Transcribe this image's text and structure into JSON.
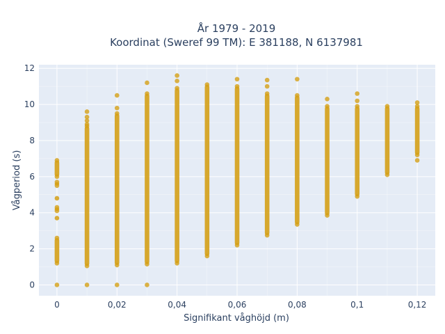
{
  "chart_data": {
    "type": "scatter",
    "title_line1": "År 1979 - 2019",
    "title_line2": "Koordinat (Sweref 99 TM): E 381188, N 6137981",
    "xlabel": "Signifikant våghöjd (m)",
    "ylabel": "Vågperiod (s)",
    "xlim": [
      -0.006,
      0.126
    ],
    "ylim": [
      -0.6,
      12.2
    ],
    "xticks": [
      0,
      0.02,
      0.04,
      0.06,
      0.08,
      0.1,
      0.12
    ],
    "xtick_labels": [
      "0",
      "0,02",
      "0,04",
      "0,06",
      "0,08",
      "0,1",
      "0,12"
    ],
    "yticks": [
      0,
      2,
      4,
      6,
      8,
      10,
      12
    ],
    "ytick_labels": [
      "0",
      "2",
      "4",
      "6",
      "8",
      "10",
      "12"
    ],
    "grid": true,
    "marker_color": "#d4a017",
    "plot_bg": "#e5ecf6",
    "columns": [
      {
        "x": 0,
        "ranges": [
          [
            1.2,
            2.6
          ],
          [
            3.7,
            3.7
          ],
          [
            4.1,
            4.3
          ],
          [
            4.8,
            4.8
          ],
          [
            5.5,
            5.7
          ],
          [
            6.0,
            6.9
          ]
        ],
        "points": [
          0
        ]
      },
      {
        "x": 0.01,
        "ranges": [
          [
            1.05,
            8.8
          ]
        ],
        "points": [
          0,
          8.9,
          9.1,
          9.3,
          9.6
        ]
      },
      {
        "x": 0.02,
        "ranges": [
          [
            1.1,
            9.5
          ]
        ],
        "points": [
          0,
          9.8,
          10.5
        ]
      },
      {
        "x": 0.03,
        "ranges": [
          [
            1.15,
            10.6
          ]
        ],
        "points": [
          0,
          11.2
        ]
      },
      {
        "x": 0.04,
        "ranges": [
          [
            1.2,
            10.9
          ]
        ],
        "points": [
          11.3,
          11.6
        ]
      },
      {
        "x": 0.05,
        "ranges": [
          [
            1.6,
            11.1
          ]
        ],
        "points": []
      },
      {
        "x": 0.06,
        "ranges": [
          [
            2.2,
            11.0
          ]
        ],
        "points": [
          11.4
        ]
      },
      {
        "x": 0.07,
        "ranges": [
          [
            2.75,
            10.6
          ]
        ],
        "points": [
          11.0,
          11.35
        ]
      },
      {
        "x": 0.08,
        "ranges": [
          [
            3.35,
            10.5
          ]
        ],
        "points": [
          11.4
        ]
      },
      {
        "x": 0.09,
        "ranges": [
          [
            3.85,
            9.9
          ]
        ],
        "points": [
          10.3
        ]
      },
      {
        "x": 0.1,
        "ranges": [
          [
            4.9,
            9.9
          ]
        ],
        "points": [
          10.2,
          10.6
        ]
      },
      {
        "x": 0.11,
        "ranges": [
          [
            6.1,
            9.9
          ]
        ],
        "points": []
      },
      {
        "x": 0.12,
        "ranges": [
          [
            7.2,
            9.9
          ]
        ],
        "points": [
          6.9,
          10.1
        ]
      }
    ]
  }
}
